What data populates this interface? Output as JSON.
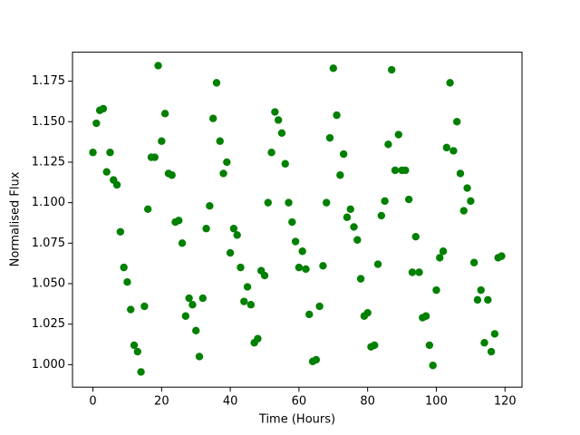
{
  "chart_data": {
    "type": "scatter",
    "xlabel": "Time (Hours)",
    "ylabel": "Normalised Flux",
    "color": "#008000",
    "grid": false,
    "x": [
      0,
      1,
      2,
      3,
      4,
      5,
      6,
      7,
      8,
      9,
      10,
      11,
      12,
      13,
      14,
      15,
      16,
      17,
      18,
      19,
      20,
      21,
      22,
      23,
      24,
      25,
      26,
      27,
      28,
      29,
      30,
      31,
      32,
      33,
      34,
      35,
      36,
      37,
      38,
      39,
      40,
      41,
      42,
      43,
      44,
      45,
      46,
      47,
      48,
      49,
      50,
      51,
      52,
      53,
      54,
      55,
      56,
      57,
      58,
      59,
      60,
      61,
      62,
      63,
      64,
      65,
      66,
      67,
      68,
      69,
      70,
      71,
      72,
      73,
      74,
      75,
      76,
      77,
      78,
      79,
      80,
      81,
      82,
      83,
      84,
      85,
      86,
      87,
      88,
      89,
      90,
      91,
      92,
      93,
      94,
      95,
      96,
      97,
      98,
      99,
      100,
      101,
      102,
      103,
      104,
      105,
      106,
      107,
      108,
      109,
      110,
      111,
      112,
      113,
      114,
      115,
      116,
      117,
      118,
      119
    ],
    "values": [
      1.131,
      1.149,
      1.157,
      1.158,
      1.119,
      1.131,
      1.114,
      1.111,
      1.082,
      1.06,
      1.051,
      1.034,
      1.012,
      1.008,
      0.9955,
      1.036,
      1.096,
      1.128,
      1.128,
      1.1846,
      1.138,
      1.155,
      1.118,
      1.117,
      1.088,
      1.089,
      1.075,
      1.03,
      1.041,
      1.037,
      1.021,
      1.005,
      1.041,
      1.084,
      1.098,
      1.152,
      1.174,
      1.138,
      1.118,
      1.125,
      1.069,
      1.084,
      1.08,
      1.06,
      1.039,
      1.048,
      1.037,
      1.0135,
      1.016,
      1.058,
      1.055,
      1.1,
      1.131,
      1.156,
      1.151,
      1.143,
      1.124,
      1.1,
      1.088,
      1.076,
      1.06,
      1.07,
      1.059,
      1.031,
      1.002,
      1.003,
      1.036,
      1.061,
      1.1,
      1.14,
      1.183,
      1.154,
      1.117,
      1.13,
      1.091,
      1.096,
      1.085,
      1.077,
      1.053,
      1.03,
      1.032,
      1.011,
      1.012,
      1.062,
      1.092,
      1.101,
      1.136,
      1.182,
      1.12,
      1.142,
      1.12,
      1.12,
      1.102,
      1.057,
      1.079,
      1.057,
      1.029,
      1.03,
      1.012,
      0.9995,
      1.046,
      1.066,
      1.07,
      1.134,
      1.174,
      1.132,
      1.15,
      1.118,
      1.095,
      1.109,
      1.101,
      1.063,
      1.04,
      1.046,
      1.0135,
      1.04,
      1.008,
      1.019,
      1.066,
      1.067
    ],
    "xlim": [
      -5.95,
      124.95
    ],
    "xticks": [
      0,
      20,
      40,
      60,
      80,
      100,
      120
    ],
    "ylim": [
      0.9861,
      1.1929
    ],
    "yticks": [
      {
        "value": 1.0,
        "label": "1.000"
      },
      {
        "value": 1.025,
        "label": "1.025"
      },
      {
        "value": 1.05,
        "label": "1.050"
      },
      {
        "value": 1.075,
        "label": "1.075"
      },
      {
        "value": 1.1,
        "label": "1.100"
      },
      {
        "value": 1.125,
        "label": "1.125"
      },
      {
        "value": 1.15,
        "label": "1.150"
      },
      {
        "value": 1.175,
        "label": "1.175"
      }
    ]
  }
}
